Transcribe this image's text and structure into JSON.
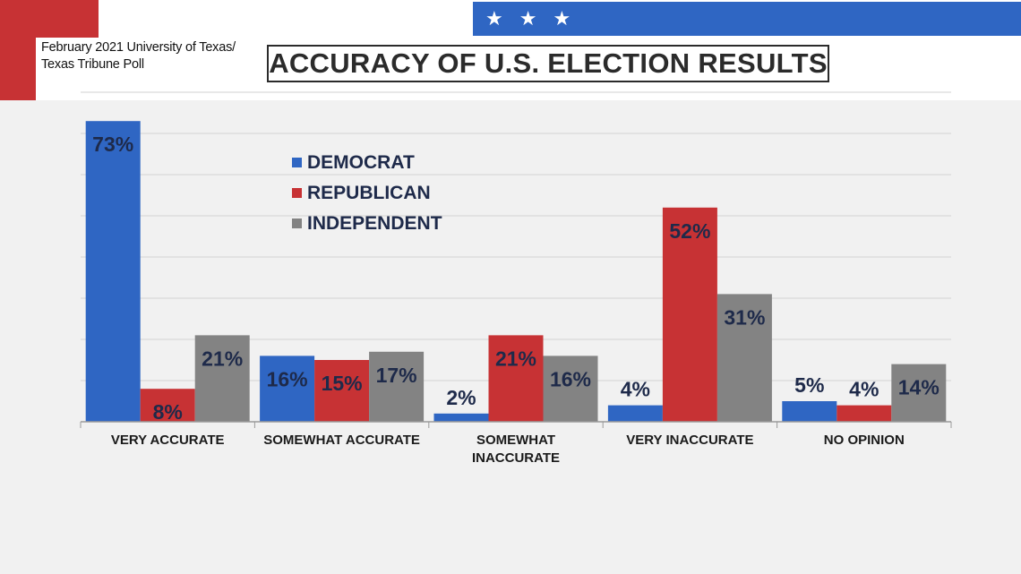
{
  "header": {
    "source_line1": "February 2021 University of Texas/",
    "source_line2": "Texas Tribune Poll",
    "title": "ACCURACY OF U.S. ELECTION RESULTS",
    "stars": [
      "★",
      "★",
      "★"
    ]
  },
  "colors": {
    "democrat": "#2f66c3",
    "republican": "#c73234",
    "independent": "#838383",
    "label_text": "#1e2a4a"
  },
  "chart_data": {
    "type": "bar",
    "title": "ACCURACY OF U.S. ELECTION RESULTS",
    "categories": [
      [
        "VERY ACCURATE"
      ],
      [
        "SOMEWHAT ACCURATE"
      ],
      [
        "SOMEWHAT",
        "INACCURATE"
      ],
      [
        "VERY INACCURATE"
      ],
      [
        "NO OPINION"
      ]
    ],
    "series": [
      {
        "name": "DEMOCRAT",
        "color": "#2f66c3",
        "values": [
          73,
          16,
          2,
          4,
          5
        ],
        "labels": [
          "73%",
          "16%",
          "2%",
          "4%",
          "5%"
        ]
      },
      {
        "name": "REPUBLICAN",
        "color": "#c73234",
        "values": [
          8,
          15,
          21,
          52,
          4
        ],
        "labels": [
          "8%",
          "15%",
          "21%",
          "52%",
          "4%"
        ]
      },
      {
        "name": "INDEPENDENT",
        "color": "#838383",
        "values": [
          21,
          17,
          16,
          31,
          14
        ],
        "labels": [
          "21%",
          "17%",
          "16%",
          "31%",
          "14%"
        ]
      }
    ],
    "ylim": [
      0,
      80
    ],
    "grid": true,
    "legend_position": "top-left"
  }
}
